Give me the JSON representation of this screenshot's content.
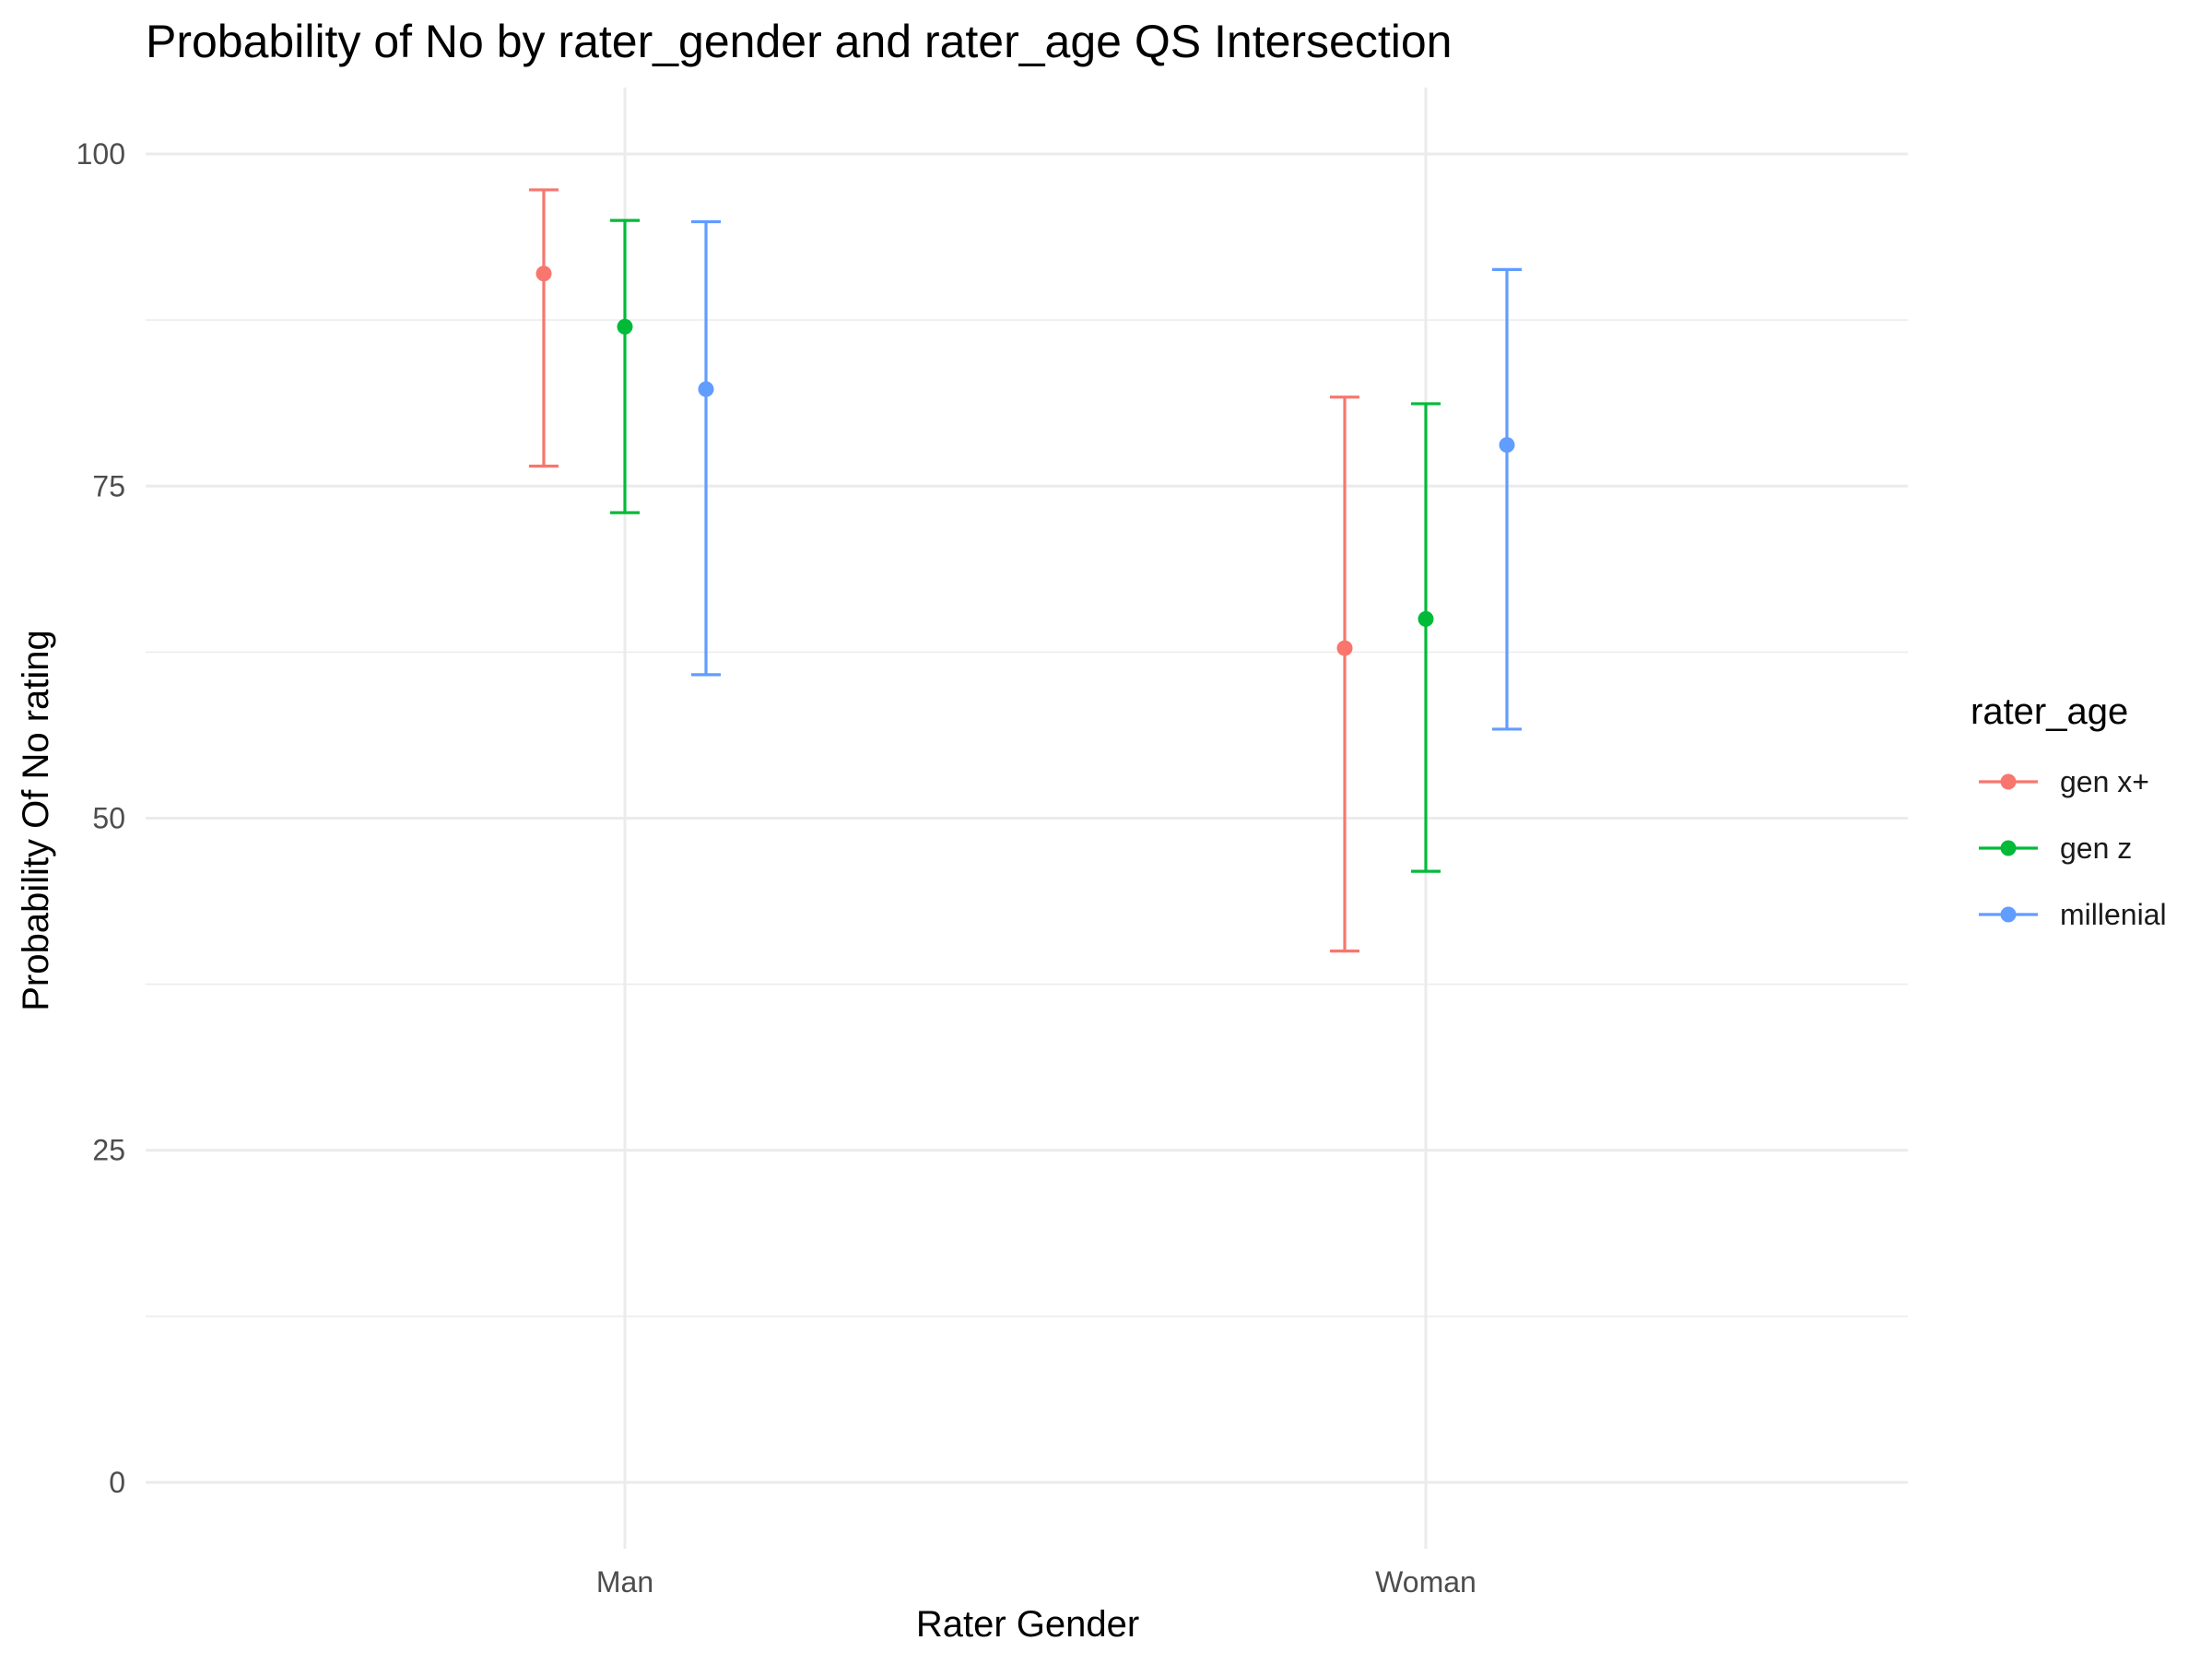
{
  "chart_data": {
    "type": "errorbar",
    "title": "Probability of No by rater_gender and  rater_age  QS Intersection",
    "xlabel": "Rater Gender",
    "ylabel": "Probability Of No rating",
    "categories": [
      "Man",
      "Woman"
    ],
    "ylim": [
      -5,
      105
    ],
    "yticks": [
      0,
      25,
      50,
      75,
      100
    ],
    "grid": true,
    "legend": {
      "title": "rater_age",
      "placement": "right"
    },
    "series": [
      {
        "name": "gen x+",
        "color": "#F8766D",
        "points": [
          {
            "category": "Man",
            "value": 91.0,
            "lower": 76.5,
            "upper": 97.3
          },
          {
            "category": "Woman",
            "value": 62.8,
            "lower": 40.0,
            "upper": 81.7
          }
        ]
      },
      {
        "name": "gen z",
        "color": "#00BA38",
        "points": [
          {
            "category": "Man",
            "value": 87.0,
            "lower": 73.0,
            "upper": 95.0
          },
          {
            "category": "Woman",
            "value": 65.0,
            "lower": 46.0,
            "upper": 81.2
          }
        ]
      },
      {
        "name": "millenial",
        "color": "#619CFF",
        "points": [
          {
            "category": "Man",
            "value": 82.3,
            "lower": 60.8,
            "upper": 94.9
          },
          {
            "category": "Woman",
            "value": 78.1,
            "lower": 56.7,
            "upper": 91.3
          }
        ]
      }
    ]
  }
}
